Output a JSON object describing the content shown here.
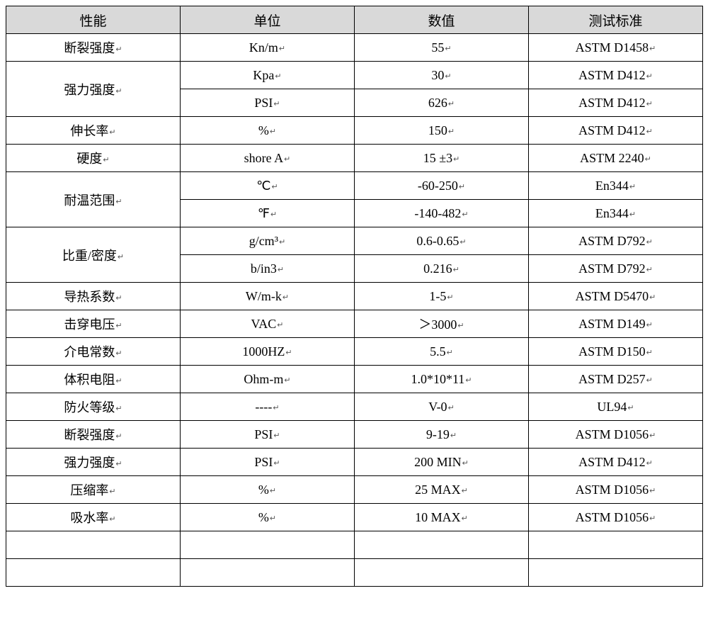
{
  "table": {
    "headers": [
      "性能",
      "单位",
      "数值",
      "测试标准"
    ],
    "return_marker": "↵",
    "header_bg": "#d9d9d9",
    "border_color": "#000000",
    "font_family": "SimSun",
    "font_size": 18,
    "rows": [
      {
        "prop": "断裂强度",
        "rowspan": 1,
        "sub": [
          {
            "unit": "Kn/m",
            "value": "55",
            "std": "ASTM D1458"
          }
        ]
      },
      {
        "prop": "强力强度",
        "rowspan": 2,
        "sub": [
          {
            "unit": "Kpa",
            "value": "30",
            "std": "ASTM D412"
          },
          {
            "unit": "PSI",
            "value": "626",
            "std": "ASTM D412"
          }
        ]
      },
      {
        "prop": "伸长率",
        "rowspan": 1,
        "sub": [
          {
            "unit": "%",
            "value": "150",
            "std": "ASTM D412"
          }
        ]
      },
      {
        "prop": "硬度",
        "rowspan": 1,
        "sub": [
          {
            "unit": "shore A",
            "value": "15 ±3",
            "std": "ASTM 2240"
          }
        ]
      },
      {
        "prop": "耐温范围",
        "rowspan": 2,
        "sub": [
          {
            "unit": "℃",
            "value": "-60-250",
            "std": "En344"
          },
          {
            "unit": "℉",
            "value": "-140-482",
            "std": "En344"
          }
        ]
      },
      {
        "prop": "比重/密度",
        "rowspan": 2,
        "sub": [
          {
            "unit": "g/cm³",
            "value": "0.6-0.65",
            "std": "ASTM D792"
          },
          {
            "unit": "b/in3",
            "value": "0.216",
            "std": "ASTM D792"
          }
        ]
      },
      {
        "prop": "导热系数",
        "rowspan": 1,
        "sub": [
          {
            "unit": "W/m-k",
            "value": "1-5",
            "std": "ASTM D5470"
          }
        ]
      },
      {
        "prop": "击穿电压",
        "rowspan": 1,
        "sub": [
          {
            "unit": "VAC",
            "value": "＞3000",
            "std": "ASTM D149"
          }
        ]
      },
      {
        "prop": "介电常数",
        "rowspan": 1,
        "sub": [
          {
            "unit": "1000HZ",
            "value": "5.5",
            "std": "ASTM D150"
          }
        ]
      },
      {
        "prop": "体积电阻",
        "rowspan": 1,
        "sub": [
          {
            "unit": "Ohm-m",
            "value": "1.0*10*11",
            "std": "ASTM D257"
          }
        ]
      },
      {
        "prop": "防火等级",
        "rowspan": 1,
        "sub": [
          {
            "unit": "----",
            "value": "V-0",
            "std": "UL94"
          }
        ]
      },
      {
        "prop": "断裂强度",
        "rowspan": 1,
        "sub": [
          {
            "unit": "PSI",
            "value": "9-19",
            "std": "ASTM D1056"
          }
        ]
      },
      {
        "prop": "强力强度",
        "rowspan": 1,
        "sub": [
          {
            "unit": "PSI",
            "value": "200 MIN",
            "std": "ASTM D412"
          }
        ]
      },
      {
        "prop": "压缩率",
        "rowspan": 1,
        "sub": [
          {
            "unit": "%",
            "value": "25 MAX",
            "std": "ASTM D1056"
          }
        ]
      },
      {
        "prop": "吸水率",
        "rowspan": 1,
        "sub": [
          {
            "unit": "%",
            "value": "10 MAX",
            "std": "ASTM D1056"
          }
        ]
      }
    ],
    "empty_rows": 2
  }
}
